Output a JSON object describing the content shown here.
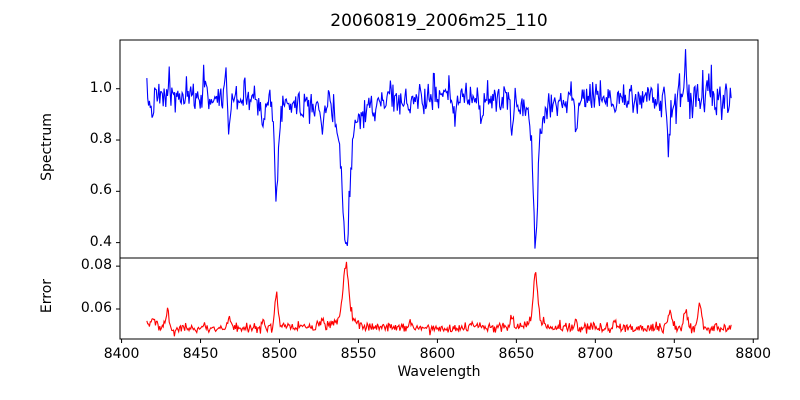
{
  "chart_data": {
    "type": "line",
    "title": "20060819_2006m25_110",
    "xlabel": "Wavelength",
    "background": "#ffffff",
    "axis_color": "#000000",
    "seed": 7,
    "x_axis": {
      "lim": [
        8399,
        8803
      ],
      "ticks": [
        {
          "value": 8400,
          "label": "8400"
        },
        {
          "value": 8450,
          "label": "8450"
        },
        {
          "value": 8500,
          "label": "8500"
        },
        {
          "value": 8550,
          "label": "8550"
        },
        {
          "value": 8600,
          "label": "8600"
        },
        {
          "value": 8650,
          "label": "8650"
        },
        {
          "value": 8700,
          "label": "8700"
        },
        {
          "value": 8750,
          "label": "8750"
        },
        {
          "value": 8800,
          "label": "8800"
        }
      ]
    },
    "data_x_range": [
      8416,
      8786
    ],
    "n_points": 680,
    "panels": [
      {
        "name": "spectrum",
        "ylabel": "Spectrum",
        "line_color": "#0000ff",
        "ylim": [
          0.34,
          1.19
        ],
        "y_ticks": [
          {
            "value": 0.4,
            "label": "0.4"
          },
          {
            "value": 0.6,
            "label": "0.6"
          },
          {
            "value": 0.8,
            "label": "0.8"
          },
          {
            "value": 1.0,
            "label": "1.0"
          }
        ],
        "continuum_level": 0.965,
        "noise_sigma": 0.028,
        "noise_boost_from": 8738,
        "noise_boost": 1.6,
        "absorption_lines": [
          {
            "center": 8498.0,
            "depth": 0.43,
            "core_sigma": 0.9,
            "wing_frac": 0.3,
            "wing_gamma": 2.0,
            "min_value": 0.53
          },
          {
            "center": 8542.1,
            "depth": 0.585,
            "core_sigma": 1.8,
            "wing_frac": 0.4,
            "wing_gamma": 5.5,
            "min_value": 0.38
          },
          {
            "center": 8662.1,
            "depth": 0.575,
            "core_sigma": 1.2,
            "wing_frac": 0.35,
            "wing_gamma": 3.5,
            "min_value": 0.39
          }
        ],
        "minor_lines": [
          {
            "center": 8419,
            "depth": 0.06,
            "sigma": 0.8
          },
          {
            "center": 8468,
            "depth": 0.13,
            "sigma": 0.7
          },
          {
            "center": 8490,
            "depth": 0.08,
            "sigma": 0.8
          },
          {
            "center": 8514,
            "depth": 0.06,
            "sigma": 0.7
          },
          {
            "center": 8527,
            "depth": 0.1,
            "sigma": 0.8
          },
          {
            "center": 8560,
            "depth": 0.07,
            "sigma": 0.7
          },
          {
            "center": 8582,
            "depth": 0.07,
            "sigma": 0.7
          },
          {
            "center": 8611,
            "depth": 0.08,
            "sigma": 0.7
          },
          {
            "center": 8628,
            "depth": 0.09,
            "sigma": 0.7
          },
          {
            "center": 8647,
            "depth": 0.12,
            "sigma": 0.8
          },
          {
            "center": 8688,
            "depth": 0.1,
            "sigma": 0.8
          },
          {
            "center": 8712,
            "depth": 0.07,
            "sigma": 0.7
          },
          {
            "center": 8747,
            "depth": 0.17,
            "sigma": 1.2
          }
        ],
        "emission_spikes": [
          {
            "center": 8430,
            "amp": 0.09,
            "sigma": 0.5
          },
          {
            "center": 8452,
            "amp": 0.13,
            "sigma": 0.5
          },
          {
            "center": 8466,
            "amp": 0.14,
            "sigma": 0.5
          },
          {
            "center": 8478,
            "amp": 0.08,
            "sigma": 0.4
          },
          {
            "center": 8531,
            "amp": 0.09,
            "sigma": 0.4
          },
          {
            "center": 8570,
            "amp": 0.07,
            "sigma": 0.4
          },
          {
            "center": 8598,
            "amp": 0.08,
            "sigma": 0.4
          },
          {
            "center": 8757,
            "amp": 0.13,
            "sigma": 0.6
          },
          {
            "center": 8771,
            "amp": 0.08,
            "sigma": 0.5
          }
        ]
      },
      {
        "name": "error",
        "ylabel": "Error",
        "line_color": "#ff0000",
        "ylim": [
          0.046,
          0.0838
        ],
        "y_ticks": [
          {
            "value": 0.06,
            "label": "0.06"
          },
          {
            "value": 0.08,
            "label": "0.08"
          }
        ],
        "baseline": 0.0512,
        "noise_sigma": 0.0011,
        "noise_boost_from": 8738,
        "noise_boost": 1.5,
        "peaks": [
          {
            "center": 8420,
            "amp": 0.003,
            "sigma": 2.0
          },
          {
            "center": 8429,
            "amp": 0.0085,
            "sigma": 1.0
          },
          {
            "center": 8468,
            "amp": 0.004,
            "sigma": 0.8
          },
          {
            "center": 8490,
            "amp": 0.003,
            "sigma": 0.8
          },
          {
            "center": 8498,
            "amp": 0.016,
            "sigma": 1.0
          },
          {
            "center": 8527,
            "amp": 0.004,
            "sigma": 0.8
          },
          {
            "center": 8542,
            "amp": 0.029,
            "sigma": 1.5,
            "wing_frac": 0.35,
            "wing_gamma": 4.0,
            "max_value": 0.081
          },
          {
            "center": 8583,
            "amp": 0.003,
            "sigma": 0.8
          },
          {
            "center": 8621,
            "amp": 0.003,
            "sigma": 0.8
          },
          {
            "center": 8647,
            "amp": 0.004,
            "sigma": 0.8
          },
          {
            "center": 8662,
            "amp": 0.0265,
            "sigma": 1.2,
            "wing_frac": 0.3,
            "wing_gamma": 3.0,
            "max_value": 0.078
          },
          {
            "center": 8688,
            "amp": 0.003,
            "sigma": 0.8
          },
          {
            "center": 8712,
            "amp": 0.0035,
            "sigma": 0.8
          },
          {
            "center": 8747,
            "amp": 0.007,
            "sigma": 1.5
          },
          {
            "center": 8757,
            "amp": 0.009,
            "sigma": 1.0
          },
          {
            "center": 8766,
            "amp": 0.009,
            "sigma": 1.2
          }
        ]
      }
    ]
  }
}
